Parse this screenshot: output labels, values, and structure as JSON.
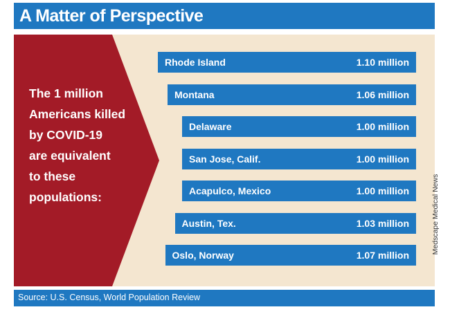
{
  "title": "A Matter of Perspective",
  "intro_text": "The 1 million\nAmericans killed\nby COVID-19\nare equivalent\nto these\npopulations:",
  "credit": "Medscape Medical News",
  "source": "Source: U.S. Census, World Population Review",
  "colors": {
    "header_blue": "#1f78c1",
    "panel_beige": "#f4e6d0",
    "arrow_red": "#a31b27"
  },
  "chart_data": {
    "type": "bar",
    "orientation": "horizontal",
    "categories": [
      "Rhode Island",
      "Montana",
      "Delaware",
      "San Jose, Calif.",
      "Acapulco, Mexico",
      "Austin, Tex.",
      "Oslo, Norway"
    ],
    "values": [
      1.1,
      1.06,
      1.0,
      1.0,
      1.0,
      1.03,
      1.07
    ],
    "value_labels": [
      "1.10 million",
      "1.06 million",
      "1.00 million",
      "1.00 million",
      "1.00 million",
      "1.03 million",
      "1.07 million"
    ],
    "unit": "million"
  }
}
